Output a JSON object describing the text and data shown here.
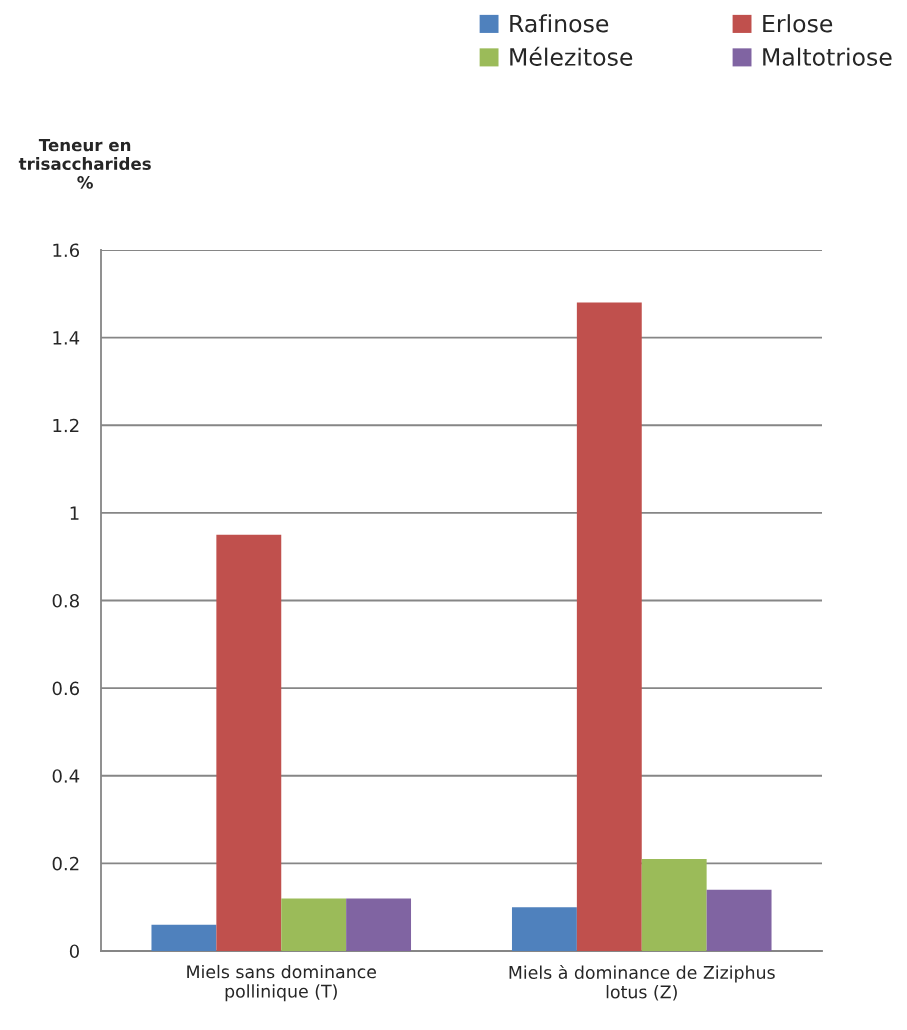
{
  "chart_data": {
    "type": "bar",
    "ylabel": "Teneur en\ntrisaccharides\n%",
    "categories": [
      "Miels sans dominance\npollinique (T)",
      "Miels à dominance de Ziziphus\nlotus (Z)"
    ],
    "series": [
      {
        "name": "Rafinose",
        "color": "#4f81bd",
        "values": [
          0.06,
          0.1
        ]
      },
      {
        "name": "Erlose",
        "color": "#c0504d",
        "values": [
          0.95,
          1.48
        ]
      },
      {
        "name": "Mélezitose",
        "color": "#9bbb59",
        "values": [
          0.12,
          0.21
        ]
      },
      {
        "name": "Maltotriose",
        "color": "#8064a2",
        "values": [
          0.12,
          0.14
        ]
      }
    ],
    "ylim": [
      0,
      1.6
    ],
    "yticks": [
      0,
      {
        "value": 0.2,
        "label": "0.2"
      },
      {
        "value": 0.4,
        "label": "0.4"
      },
      {
        "value": 0.6,
        "label": "0.6"
      },
      {
        "value": 0.8,
        "label": "0.8"
      },
      1,
      {
        "value": 1.2,
        "label": "1.2"
      },
      {
        "value": 1.4,
        "label": "1.4"
      },
      {
        "value": 1.6,
        "label": "1.6"
      }
    ],
    "grid": "y",
    "legend": "top right"
  }
}
